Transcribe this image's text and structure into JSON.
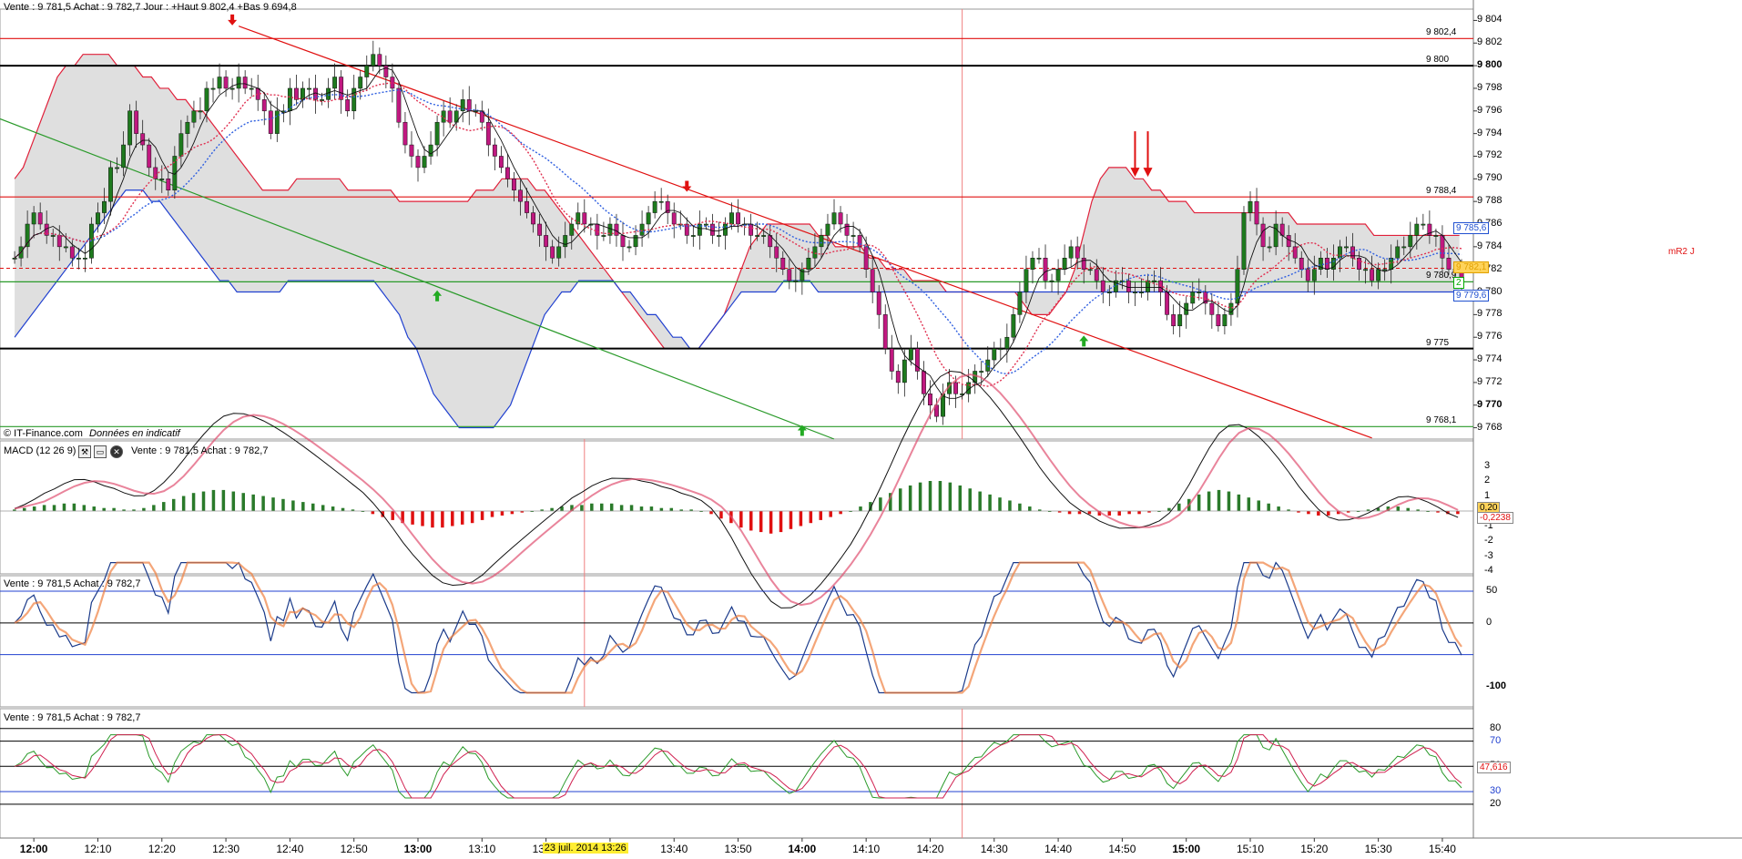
{
  "header": {
    "quote": "Vente : 9 781,5 Achat : 9 782,7 Jour : +Haut 9 802,4 +Bas 9 694,8",
    "watermark": "© IT-Finance.com",
    "watermark_note": "Données en indicatif"
  },
  "price_panel": {
    "yticks": [
      "9 804",
      "9 802",
      "9 800",
      "9 798",
      "9 796",
      "9 794",
      "9 792",
      "9 790",
      "9 788",
      "9 786",
      "9 784",
      "9 782",
      "9 780",
      "9 778",
      "9 776",
      "9 774",
      "9 772",
      "9 770",
      "9 768"
    ],
    "bold_ticks": [
      "9 800",
      "9 770"
    ],
    "level_labels": [
      {
        "text": "9 802,4",
        "price": 9802.4,
        "color": "#e01010"
      },
      {
        "text": "9 800",
        "price": 9800,
        "color": "#000000"
      },
      {
        "text": "9 788,4",
        "price": 9788.4,
        "color": "#e01010"
      },
      {
        "text": "9 780,9",
        "price": 9780.9,
        "color": "#2a9a2a"
      },
      {
        "text": "9 775",
        "price": 9775,
        "color": "#000000"
      },
      {
        "text": "9 768,1",
        "price": 9768.1,
        "color": "#2a9a2a"
      }
    ],
    "badges": [
      {
        "text": "9 785,6",
        "price": 9785.6,
        "color": "#2050d0"
      },
      {
        "text": "9 782,1",
        "price": 9782.1,
        "color": "#e0a000"
      },
      {
        "text": "2",
        "price": 9780.8,
        "color": "#00aa00"
      },
      {
        "text": "9 779,6",
        "price": 9779.6,
        "color": "#2050d0"
      }
    ],
    "pivot_label": "mR2 J",
    "pivot_price": 9782.1
  },
  "macd_panel": {
    "title": "MACD (12 26 9)",
    "quote": "Vente : 9 781,5 Achat : 9 782,7",
    "yticks": [
      "3",
      "2",
      "1",
      "0",
      "-1",
      "-2",
      "-3",
      "-4"
    ],
    "badges": [
      "0,20",
      "-0,2238"
    ]
  },
  "osc_panel": {
    "quote": "Vente : 9 781,5 Achat : 9 782,7",
    "yticks": [
      "50",
      "0",
      "-100"
    ]
  },
  "rsi_panel": {
    "quote": "Vente : 9 781,5 Achat : 9 782,7",
    "yticks": [
      "80",
      "70",
      "50",
      "30",
      "20"
    ],
    "badge": "47,616"
  },
  "xaxis": {
    "ticks": [
      {
        "text": "12:00",
        "bold": true
      },
      {
        "text": "12:10",
        "bold": false
      },
      {
        "text": "12:20",
        "bold": false
      },
      {
        "text": "12:30",
        "bold": false
      },
      {
        "text": "12:40",
        "bold": false
      },
      {
        "text": "12:50",
        "bold": false
      },
      {
        "text": "13:00",
        "bold": true
      },
      {
        "text": "13:10",
        "bold": false
      },
      {
        "text": "13:20",
        "bold": false
      },
      {
        "text": "13:30",
        "bold": false
      },
      {
        "text": "13:40",
        "bold": false
      },
      {
        "text": "13:50",
        "bold": false
      },
      {
        "text": "14:00",
        "bold": true
      },
      {
        "text": "14:10",
        "bold": false
      },
      {
        "text": "14:20",
        "bold": false
      },
      {
        "text": "14:30",
        "bold": false
      },
      {
        "text": "14:40",
        "bold": false
      },
      {
        "text": "14:50",
        "bold": false
      },
      {
        "text": "15:00",
        "bold": true
      },
      {
        "text": "15:10",
        "bold": false
      },
      {
        "text": "15:20",
        "bold": false
      },
      {
        "text": "15:30",
        "bold": false
      },
      {
        "text": "15:40",
        "bold": false
      }
    ],
    "cursor_label": "23 juil. 2014 13:26"
  },
  "colors": {
    "up": "#1e7a1e",
    "down": "#c01880",
    "bollinger_fill": "#d9d9d9",
    "bollinger_upper": "#e0203a",
    "bollinger_lower": "#2040d0",
    "resistance": "#e01010",
    "support": "#2a9a2a",
    "macd_pos": "#2a7a2a",
    "macd_neg": "#e01010"
  },
  "chart_data": {
    "type": "candlestick",
    "time_start": "11:57",
    "interval_min": 1,
    "x_range": [
      "11:55",
      "15:42"
    ],
    "ylim": [
      9767,
      9805
    ],
    "close": [
      9783,
      9784,
      9786,
      9787,
      9786,
      9785,
      9785,
      9784,
      9784,
      9783,
      9783,
      9783,
      9786,
      9787,
      9788,
      9791,
      9791,
      9793,
      9796,
      9794,
      9793,
      9791,
      9790,
      9790,
      9789,
      9792,
      9794,
      9795,
      9796,
      9796,
      9798,
      9798,
      9799,
      9798,
      9798,
      9799,
      9798,
      9798,
      9797,
      9796,
      9794,
      9796,
      9796,
      9798,
      9797,
      9798,
      9798,
      9797,
      9797,
      9798,
      9799,
      9797,
      9796,
      9798,
      9799,
      9800,
      9801,
      9800,
      9799,
      9798,
      9795,
      9793,
      9792,
      9791,
      9792,
      9793,
      9795,
      9796,
      9795,
      9796,
      9797,
      9796,
      9796,
      9795,
      9793,
      9792,
      9791,
      9790,
      9789,
      9788,
      9787,
      9786,
      9785,
      9784,
      9783,
      9784,
      9785,
      9786,
      9787,
      9786,
      9786,
      9785,
      9785,
      9786,
      9785,
      9784,
      9784,
      9785,
      9786,
      9787,
      9788,
      9788,
      9787,
      9786,
      9786,
      9785,
      9785,
      9786,
      9786,
      9785,
      9785,
      9786,
      9787,
      9786,
      9786,
      9785,
      9785,
      9785,
      9784,
      9783,
      9782,
      9781,
      9781,
      9782,
      9783,
      9784,
      9785,
      9786,
      9787,
      9786,
      9785,
      9785,
      9784,
      9782,
      9780,
      9778,
      9775,
      9773,
      9772,
      9774,
      9775,
      9773,
      9771,
      9770,
      9769,
      9771,
      9772,
      9771,
      9771,
      9772,
      9773,
      9773,
      9774,
      9775,
      9775,
      9776,
      9778,
      9780,
      9782,
      9783,
      9783,
      9781,
      9781,
      9782,
      9783,
      9784,
      9783,
      9782,
      9782,
      9781,
      9780,
      9780,
      9781,
      9781,
      9780,
      9780,
      9780,
      9781,
      9781,
      9780,
      9778,
      9777,
      9778,
      9779,
      9780,
      9780,
      9779,
      9778,
      9777,
      9778,
      9779,
      9782,
      9787,
      9788,
      9786,
      9784,
      9784,
      9786,
      9785,
      9784,
      9783,
      9782,
      9781,
      9782,
      9783,
      9782,
      9783,
      9784,
      9784,
      9783,
      9782,
      9782,
      9781,
      9782,
      9782,
      9783,
      9784,
      9784,
      9785,
      9786,
      9786,
      9785,
      9785,
      9783,
      9782,
      9782,
      9781
    ],
    "bollinger_upper": [
      9790,
      9791,
      9793,
      9795,
      9797,
      9799,
      9800,
      9800,
      9801,
      9801,
      9801,
      9801,
      9800,
      9800,
      9800,
      9799,
      9799,
      9798,
      9798,
      9797,
      9797,
      9796,
      9796,
      9795,
      9794,
      9793,
      9792,
      9791,
      9790,
      9789,
      9789,
      9789,
      9789,
      9790,
      9790,
      9790,
      9790,
      9790,
      9790,
      9789,
      9789,
      9789,
      9789,
      9789,
      9789,
      9788,
      9788,
      9788,
      9788,
      9788,
      9788,
      9788,
      9788,
      9788,
      9789,
      9789,
      9789,
      9790,
      9790,
      9790,
      9790,
      9789,
      9789,
      9788,
      9787,
      9786,
      9785,
      9784,
      9783,
      9782,
      9781,
      9780,
      9779,
      9778,
      9777,
      9776,
      9775,
      9775,
      9775,
      9775,
      9775,
      9776,
      9777,
      9778,
      9780,
      9782,
      9784,
      9785,
      9786,
      9786,
      9786,
      9786,
      9786,
      9786,
      9785,
      9785,
      9784,
      9784,
      9784,
      9784,
      9783,
      9783,
      9782,
      9782,
      9782,
      9781,
      9781,
      9781,
      9781,
      9780,
      9780,
      9780,
      9780,
      9780,
      9780,
      9780,
      9780,
      9780,
      9779,
      9778,
      9778,
      9778,
      9779,
      9780,
      9782,
      9785,
      9788,
      9790,
      9791,
      9791,
      9791,
      9790,
      9790,
      9789,
      9789,
      9788,
      9788,
      9788,
      9787,
      9787,
      9787,
      9787,
      9787,
      9787,
      9787,
      9787,
      9787,
      9787,
      9787,
      9787,
      9786,
      9786,
      9786,
      9786,
      9786,
      9786,
      9786,
      9786,
      9786,
      9785,
      9785,
      9785,
      9785,
      9785,
      9785,
      9785,
      9785,
      9785,
      9785,
      9785
    ],
    "bollinger_lower": [
      9776,
      9777,
      9778,
      9779,
      9780,
      9781,
      9782,
      9783,
      9784,
      9785,
      9786,
      9787,
      9788,
      9789,
      9789,
      9789,
      9788,
      9788,
      9787,
      9786,
      9785,
      9784,
      9783,
      9782,
      9781,
      9781,
      9780,
      9780,
      9780,
      9780,
      9780,
      9780,
      9781,
      9781,
      9781,
      9781,
      9781,
      9781,
      9781,
      9781,
      9781,
      9781,
      9781,
      9780,
      9779,
      9778,
      9776,
      9775,
      9773,
      9771,
      9770,
      9769,
      9768,
      9768,
      9768,
      9768,
      9768,
      9769,
      9770,
      9772,
      9774,
      9776,
      9778,
      9779,
      9780,
      9780,
      9781,
      9781,
      9781,
      9781,
      9781,
      9780,
      9780,
      9779,
      9778,
      9778,
      9777,
      9776,
      9776,
      9775,
      9775,
      9776,
      9777,
      9778,
      9779,
      9780,
      9780,
      9780,
      9780,
      9780,
      9781,
      9781,
      9781,
      9781,
      9780,
      9780,
      9780,
      9780,
      9780,
      9780,
      9780,
      9780,
      9780,
      9780,
      9780,
      9780,
      9780,
      9780,
      9780,
      9780,
      9780,
      9780,
      9780,
      9780,
      9780,
      9780,
      9780,
      9780,
      9780,
      9780,
      9780,
      9780,
      9780,
      9780,
      9780,
      9780,
      9780,
      9780,
      9780,
      9780,
      9780,
      9780,
      9780,
      9780,
      9780,
      9780,
      9780,
      9780,
      9780,
      9780,
      9780,
      9780,
      9780,
      9780,
      9780,
      9780,
      9780,
      9780,
      9780,
      9780,
      9780,
      9780,
      9780,
      9780,
      9780,
      9780,
      9780,
      9780,
      9780,
      9780,
      9780,
      9780,
      9780,
      9780,
      9780,
      9780,
      9780,
      9780,
      9780,
      9780
    ],
    "macd_hist": [
      0.1,
      0.2,
      0.3,
      0.4,
      0.4,
      0.5,
      0.5,
      0.4,
      0.3,
      0.2,
      0.2,
      0.1,
      0.1,
      0.2,
      0.4,
      0.6,
      0.8,
      1.0,
      1.2,
      1.3,
      1.4,
      1.4,
      1.3,
      1.2,
      1.1,
      1.0,
      0.9,
      0.8,
      0.7,
      0.6,
      0.5,
      0.4,
      0.3,
      0.2,
      0.1,
      0.0,
      -0.2,
      -0.4,
      -0.6,
      -0.8,
      -0.9,
      -1.0,
      -1.1,
      -1.1,
      -1.0,
      -0.9,
      -0.8,
      -0.6,
      -0.4,
      -0.3,
      -0.2,
      -0.1,
      0.0,
      0.1,
      0.2,
      0.3,
      0.4,
      0.4,
      0.5,
      0.5,
      0.5,
      0.4,
      0.4,
      0.3,
      0.3,
      0.2,
      0.2,
      0.1,
      0.1,
      0.0,
      -0.2,
      -0.5,
      -0.8,
      -1.1,
      -1.3,
      -1.4,
      -1.5,
      -1.4,
      -1.2,
      -1.0,
      -0.8,
      -0.6,
      -0.4,
      -0.2,
      0.0,
      0.3,
      0.6,
      0.9,
      1.2,
      1.5,
      1.7,
      1.9,
      2.0,
      2.0,
      1.9,
      1.7,
      1.5,
      1.3,
      1.1,
      0.9,
      0.7,
      0.5,
      0.3,
      0.1,
      0.0,
      -0.1,
      -0.2,
      -0.2,
      -0.2,
      -0.3,
      -0.3,
      -0.3,
      -0.2,
      -0.2,
      -0.1,
      0.0,
      0.2,
      0.5,
      0.8,
      1.1,
      1.3,
      1.4,
      1.3,
      1.1,
      0.9,
      0.7,
      0.5,
      0.3,
      0.1,
      -0.1,
      -0.2,
      -0.3,
      -0.3,
      -0.2,
      -0.1,
      0.0,
      0.1,
      0.2,
      0.3,
      0.3,
      0.2,
      0.1,
      0.0,
      -0.1,
      -0.2,
      -0.2
    ]
  }
}
